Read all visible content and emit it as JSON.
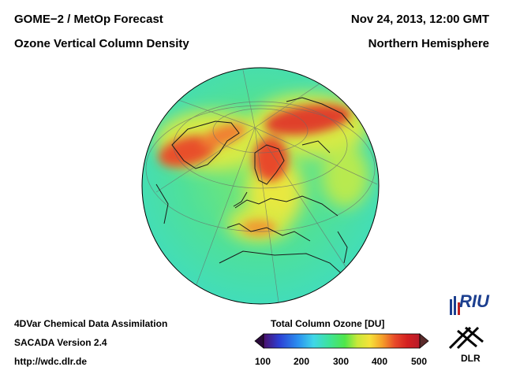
{
  "header": {
    "title_line1": "GOME−2 / MetOp Forecast",
    "title_line2": "Ozone Vertical Column Density",
    "date": "Nov 24, 2013, 12:00 GMT",
    "region": "Northern Hemisphere"
  },
  "footer": {
    "line1": "4DVar Chemical Data Assimilation",
    "line2": "SACADA Version 2.4",
    "url": "http://wdc.dlr.de"
  },
  "colorbar": {
    "title": "Total Column Ozone [DU]",
    "min": 100,
    "max": 500,
    "ticks": [
      "100",
      "200",
      "300",
      "400",
      "500"
    ],
    "stops": [
      "#4b0f6b",
      "#2c3fd4",
      "#2a8ff0",
      "#3fd6e8",
      "#3de39a",
      "#4fe64a",
      "#c8e83a",
      "#f5e23a",
      "#f5a02a",
      "#e84a2a",
      "#d42020",
      "#b81a2a"
    ]
  },
  "map": {
    "projection": "orthographic",
    "background_color": "#4fe09a",
    "high_ozone_color": "#e03a2a",
    "elevated_color": "#f5e23a"
  },
  "logos": {
    "riu": "RIU",
    "dlr": "DLR"
  }
}
